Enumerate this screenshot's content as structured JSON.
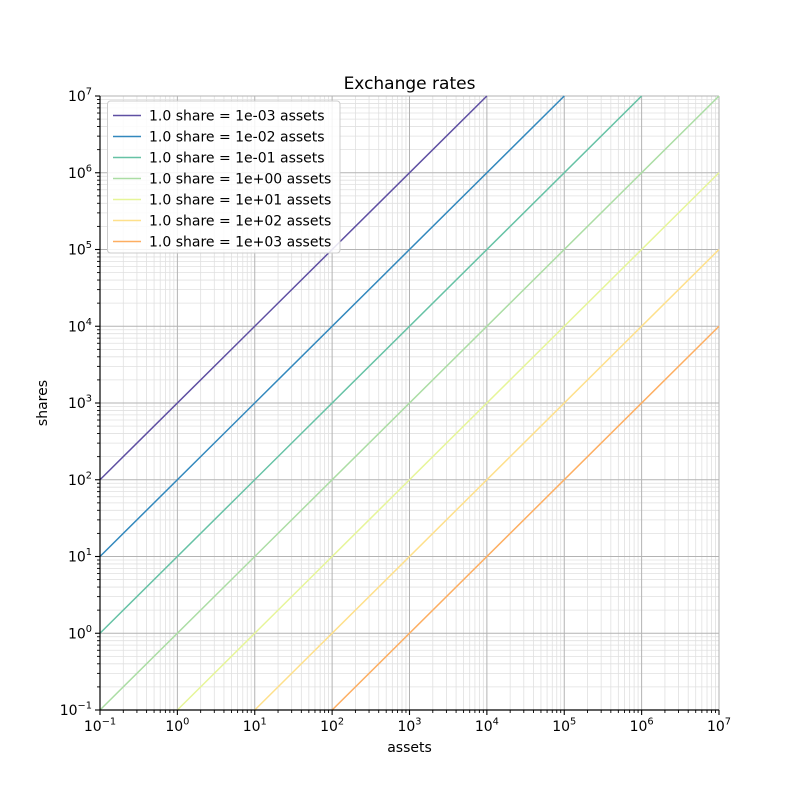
{
  "figure": {
    "background": "#ffffff"
  },
  "chart_data": {
    "type": "line",
    "title": "Exchange rates",
    "xlabel": "assets",
    "ylabel": "shares",
    "xscale": "log",
    "yscale": "log",
    "xlim": [
      0.1,
      10000000
    ],
    "ylim": [
      0.1,
      10000000
    ],
    "x_tick_exponents": [
      -1,
      0,
      1,
      2,
      3,
      4,
      5,
      6,
      7
    ],
    "y_tick_exponents": [
      -1,
      0,
      1,
      2,
      3,
      4,
      5,
      6,
      7
    ],
    "grid": {
      "major": true,
      "minor": true,
      "major_color": "#b3b3b3",
      "minor_color": "#e0e0e0"
    },
    "legend": {
      "position": "upper left",
      "frame": true,
      "frame_color": "#cccccc",
      "background": "rgba(255,255,255,0.85)"
    },
    "series": [
      {
        "label": "1.0 share = 1e-03 assets",
        "color": "#5e4fa2",
        "rate": 0.001,
        "points": [
          [
            0.1,
            100
          ],
          [
            10000,
            10000000
          ]
        ]
      },
      {
        "label": "1.0 share = 1e-02 assets",
        "color": "#3288bd",
        "rate": 0.01,
        "points": [
          [
            0.1,
            10
          ],
          [
            100000,
            10000000
          ]
        ]
      },
      {
        "label": "1.0 share = 1e-01 assets",
        "color": "#66c2a5",
        "rate": 0.1,
        "points": [
          [
            0.1,
            1
          ],
          [
            1000000,
            10000000
          ]
        ]
      },
      {
        "label": "1.0 share = 1e+00 assets",
        "color": "#abdda4",
        "rate": 1,
        "points": [
          [
            0.1,
            0.1
          ],
          [
            10000000,
            10000000
          ]
        ]
      },
      {
        "label": "1.0 share = 1e+01 assets",
        "color": "#e6f598",
        "rate": 10,
        "points": [
          [
            1,
            0.1
          ],
          [
            10000000,
            1000000
          ]
        ]
      },
      {
        "label": "1.0 share = 1e+02 assets",
        "color": "#fee08b",
        "rate": 100,
        "points": [
          [
            10,
            0.1
          ],
          [
            10000000,
            100000
          ]
        ]
      },
      {
        "label": "1.0 share = 1e+03 assets",
        "color": "#fdae61",
        "rate": 1000,
        "points": [
          [
            100,
            0.1
          ],
          [
            10000000,
            10000
          ]
        ]
      }
    ]
  }
}
